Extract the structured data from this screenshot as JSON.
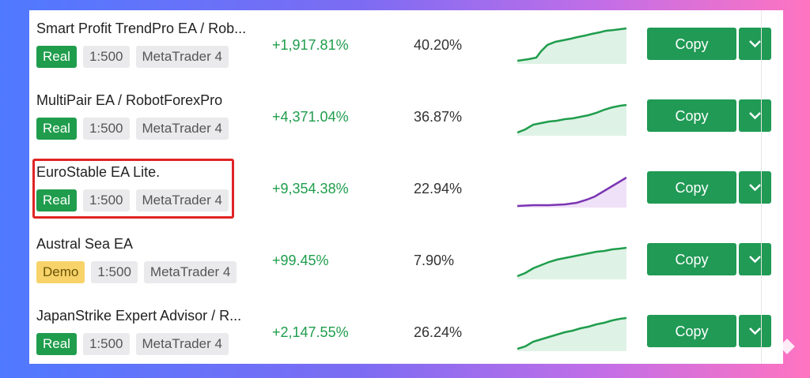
{
  "copy_label": "Copy",
  "colors": {
    "green": "#1f9d4c",
    "button": "#209a55",
    "purple": "#7a35b3",
    "highlight": "#e02424",
    "demo_badge": "#f7d36a"
  },
  "rows": [
    {
      "name": "Smart Profit TrendPro EA / Rob...",
      "badge": "Real",
      "leverage": "1:500",
      "platform": "MetaTrader 4",
      "gain": "+1,917.81%",
      "drawdown": "40.20%",
      "chart_color": "green"
    },
    {
      "name": "MultiPair EA / RobotForexPro",
      "badge": "Real",
      "leverage": "1:500",
      "platform": "MetaTrader 4",
      "gain": "+4,371.04%",
      "drawdown": "36.87%",
      "chart_color": "green"
    },
    {
      "name": "EuroStable EA Lite.",
      "badge": "Real",
      "leverage": "1:500",
      "platform": "MetaTrader 4",
      "gain": "+9,354.38%",
      "drawdown": "22.94%",
      "chart_color": "purple",
      "highlighted": true
    },
    {
      "name": "Austral Sea EA",
      "badge": "Demo",
      "leverage": "1:500",
      "platform": "MetaTrader 4",
      "gain": "+99.45%",
      "drawdown": "7.90%",
      "chart_color": "green"
    },
    {
      "name": "JapanStrike Expert Advisor / R...",
      "badge": "Real",
      "leverage": "1:500",
      "platform": "MetaTrader 4",
      "gain": "+2,147.55%",
      "drawdown": "26.24%",
      "chart_color": "green"
    }
  ]
}
